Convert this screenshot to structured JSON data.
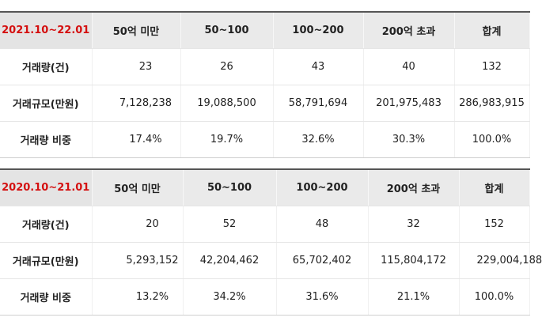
{
  "tables": [
    {
      "period": "2021.10~22.01",
      "headers": [
        "50억 미만",
        "50~100",
        "100~200",
        "200억 초과",
        "합계"
      ],
      "rows": [
        {
          "label": "거래량(건)",
          "values": [
            "23",
            "26",
            "43",
            "40",
            "132"
          ]
        },
        {
          "label": "거래규모(만원)",
          "values": [
            "7,128,238",
            "19,088,500",
            "58,791,694",
            "201,975,483",
            "286,983,915"
          ]
        },
        {
          "label": "거래량 비중",
          "values": [
            "17.4%",
            "19.7%",
            "32.6%",
            "30.3%",
            "100.0%"
          ]
        }
      ]
    },
    {
      "period": "2020.10~21.01",
      "headers": [
        "50억 미만",
        "50~100",
        "100~200",
        "200억 초과",
        "합계"
      ],
      "rows": [
        {
          "label": "거래량(건)",
          "values": [
            "20",
            "52",
            "48",
            "32",
            "152"
          ]
        },
        {
          "label": "거래규모(만원)",
          "values": [
            "5,293,152",
            "42,204,462",
            "65,702,402",
            "115,804,172",
            "229,004,188"
          ]
        },
        {
          "label": "거래량 비중",
          "values": [
            "13.2%",
            "34.2%",
            "31.6%",
            "21.1%",
            "100.0%"
          ]
        }
      ]
    }
  ],
  "colors": {
    "period_text": "#d41010",
    "header_bg": "#eaeaea"
  }
}
